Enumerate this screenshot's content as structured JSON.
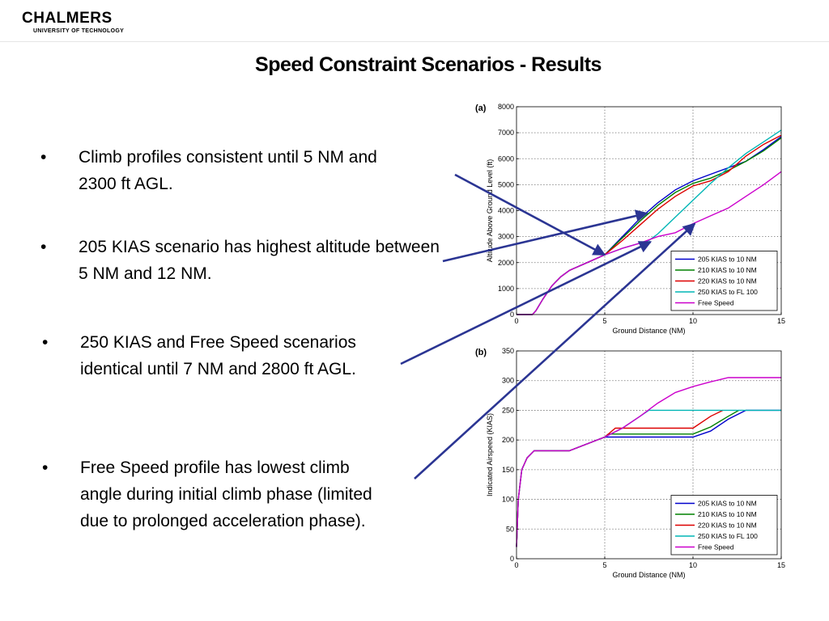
{
  "header": {
    "logo_main": "CHALMERS",
    "logo_sub": "UNIVERSITY OF TECHNOLOGY"
  },
  "slide": {
    "title": "Speed Constraint Scenarios - Results",
    "bullets": [
      {
        "marker": "•",
        "text": "Climb profiles consistent until 5 NM and 2300 ft AGL."
      },
      {
        "marker": "•",
        "text": "205 KIAS scenario has highest altitude between 5 NM and 12 NM."
      },
      {
        "marker": "•",
        "text": "250 KIAS and Free Speed scenarios identical until 7 NM and 2800 ft AGL."
      },
      {
        "marker": "•",
        "text": "Free Speed profile has lowest climb angle during initial climb phase (limited due to prolonged acceleration phase)."
      }
    ],
    "arrow_color": "#2b3593"
  },
  "chart_data": [
    {
      "type": "line",
      "panel_label": "(a)",
      "xlabel": "Ground Distance (NM)",
      "ylabel": "Altitude Above Ground Level (ft)",
      "xlim": [
        0,
        15
      ],
      "ylim": [
        0,
        8000
      ],
      "xticks": [
        0,
        5,
        10,
        15
      ],
      "yticks": [
        0,
        1000,
        2000,
        3000,
        4000,
        5000,
        6000,
        7000,
        8000
      ],
      "grid": true,
      "legend_position": "bottom-right",
      "series": [
        {
          "name": "205 KIAS to 10 NM",
          "color": "#0000cc",
          "x": [
            0,
            0.9,
            1.1,
            1.5,
            2,
            2.5,
            3,
            4,
            5,
            6,
            7,
            8,
            9,
            10,
            11,
            12,
            13,
            14,
            15
          ],
          "y": [
            0,
            0,
            150,
            600,
            1100,
            1450,
            1700,
            2000,
            2300,
            3000,
            3700,
            4300,
            4800,
            5150,
            5400,
            5650,
            5900,
            6350,
            6850
          ]
        },
        {
          "name": "210 KIAS to 10 NM",
          "color": "#008000",
          "x": [
            0,
            0.9,
            1.1,
            1.5,
            2,
            2.5,
            3,
            4,
            5,
            6,
            7,
            8,
            9,
            10,
            11,
            12,
            13,
            14,
            15
          ],
          "y": [
            0,
            0,
            150,
            600,
            1100,
            1450,
            1700,
            2000,
            2300,
            2950,
            3600,
            4200,
            4700,
            5050,
            5250,
            5550,
            5900,
            6300,
            6800
          ]
        },
        {
          "name": "220 KIAS to 10 NM",
          "color": "#dd0000",
          "x": [
            0,
            0.9,
            1.1,
            1.5,
            2,
            2.5,
            3,
            4,
            5,
            6,
            7,
            8,
            9,
            10,
            11,
            12,
            13,
            14,
            15
          ],
          "y": [
            0,
            0,
            150,
            600,
            1100,
            1450,
            1700,
            2000,
            2300,
            2850,
            3450,
            4050,
            4550,
            4950,
            5150,
            5500,
            6100,
            6550,
            6900
          ]
        },
        {
          "name": "250 KIAS to FL 100",
          "color": "#00b5b5",
          "x": [
            0,
            0.9,
            1.1,
            1.5,
            2,
            2.5,
            3,
            4,
            5,
            6,
            7,
            7.5,
            8,
            9,
            10,
            11,
            12,
            13,
            14,
            15
          ],
          "y": [
            0,
            0,
            150,
            600,
            1100,
            1450,
            1700,
            2000,
            2300,
            2550,
            2750,
            2850,
            3100,
            3750,
            4400,
            5050,
            5650,
            6200,
            6650,
            7100
          ]
        },
        {
          "name": "Free Speed",
          "color": "#cc00cc",
          "x": [
            0,
            0.9,
            1.1,
            1.5,
            2,
            2.5,
            3,
            4,
            5,
            6,
            7,
            8,
            9,
            10,
            11,
            12,
            13,
            14,
            15
          ],
          "y": [
            0,
            0,
            150,
            600,
            1100,
            1450,
            1700,
            2000,
            2300,
            2550,
            2750,
            3000,
            3150,
            3500,
            3800,
            4100,
            4550,
            5000,
            5500
          ]
        }
      ]
    },
    {
      "type": "line",
      "panel_label": "(b)",
      "xlabel": "Ground Distance (NM)",
      "ylabel": "Indicated Airspeed (KIAS)",
      "xlim": [
        0,
        15
      ],
      "ylim": [
        0,
        350
      ],
      "xticks": [
        0,
        5,
        10,
        15
      ],
      "yticks": [
        0,
        50,
        100,
        150,
        200,
        250,
        300,
        350
      ],
      "grid": true,
      "legend_position": "bottom-right",
      "series": [
        {
          "name": "205 KIAS to 10 NM",
          "color": "#0000cc",
          "x": [
            0,
            0.1,
            0.3,
            0.6,
            1,
            3,
            5,
            10,
            11,
            12,
            13,
            15
          ],
          "y": [
            20,
            100,
            150,
            170,
            182,
            182,
            205,
            205,
            215,
            235,
            250,
            250
          ]
        },
        {
          "name": "210 KIAS to 10 NM",
          "color": "#008000",
          "x": [
            0,
            0.1,
            0.3,
            0.6,
            1,
            3,
            5,
            5.2,
            10,
            11,
            12,
            12.6
          ],
          "y": [
            20,
            100,
            150,
            170,
            182,
            182,
            205,
            210,
            210,
            222,
            240,
            250
          ]
        },
        {
          "name": "220 KIAS to 10 NM",
          "color": "#dd0000",
          "x": [
            0,
            0.1,
            0.3,
            0.6,
            1,
            3,
            5,
            5.6,
            10,
            11,
            11.7
          ],
          "y": [
            20,
            100,
            150,
            170,
            182,
            182,
            205,
            220,
            220,
            240,
            250
          ]
        },
        {
          "name": "250 KIAS to FL 100",
          "color": "#00b5b5",
          "x": [
            0,
            0.1,
            0.3,
            0.6,
            1,
            3,
            5,
            6,
            7,
            7.5,
            15
          ],
          "y": [
            20,
            100,
            150,
            170,
            182,
            182,
            205,
            220,
            240,
            250,
            250
          ]
        },
        {
          "name": "Free Speed",
          "color": "#cc00cc",
          "x": [
            0,
            0.1,
            0.3,
            0.6,
            1,
            3,
            5,
            6,
            7,
            8,
            9,
            10,
            11,
            12,
            15
          ],
          "y": [
            20,
            100,
            150,
            170,
            182,
            182,
            205,
            220,
            240,
            262,
            280,
            290,
            298,
            305,
            305
          ]
        }
      ]
    }
  ]
}
